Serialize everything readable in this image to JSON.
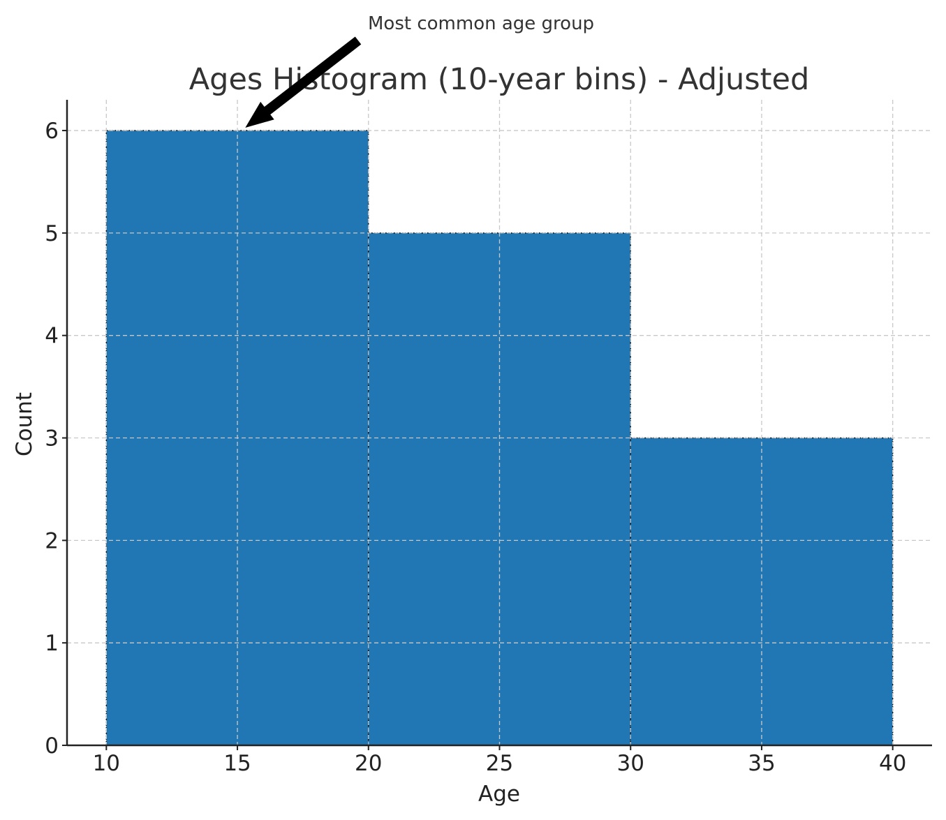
{
  "chart_data": {
    "type": "bar",
    "title": "Ages Histogram (10-year bins) - Adjusted",
    "xlabel": "Age",
    "ylabel": "Count",
    "bins": [
      {
        "start": 10,
        "end": 20,
        "count": 6
      },
      {
        "start": 20,
        "end": 30,
        "count": 5
      },
      {
        "start": 30,
        "end": 40,
        "count": 3
      }
    ],
    "xlim": [
      8.5,
      41.5
    ],
    "ylim": [
      0,
      6.3
    ],
    "xticks": [
      10,
      15,
      20,
      25,
      30,
      35,
      40
    ],
    "yticks": [
      0,
      1,
      2,
      3,
      4,
      5,
      6
    ],
    "grid": true,
    "colors": {
      "bar": "#2077b4",
      "edge": "#111111"
    },
    "annotation": {
      "text": "Most common age group",
      "target_x": 15.3,
      "target_y": 6
    }
  }
}
